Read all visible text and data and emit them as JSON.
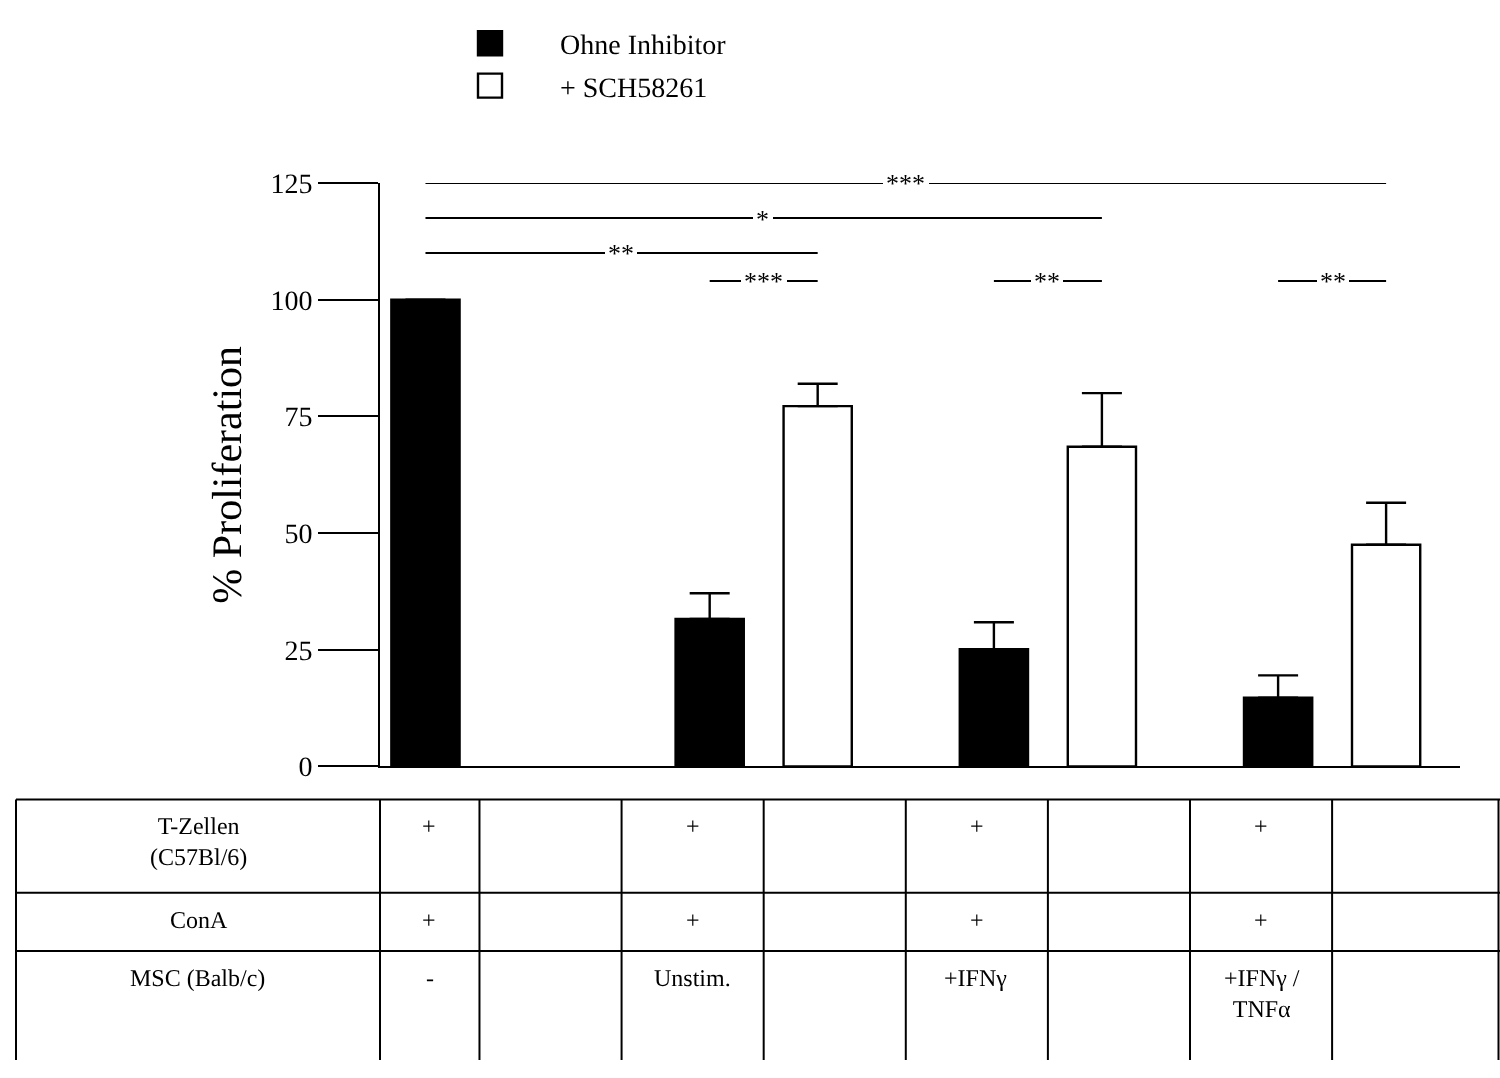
{
  "chart_data": {
    "type": "bar",
    "ylabel": "% Proliferation",
    "categories": [
      null,
      null,
      null,
      null
    ],
    "series": [
      {
        "name": "Ohne Inhibitor",
        "color": "#000000",
        "values": [
          100,
          31.6,
          25.1,
          14.7
        ],
        "errors": [
          null,
          [
            31.6,
            37.1
          ],
          [
            25.1,
            30.9
          ],
          [
            14.7,
            19.5
          ]
        ]
      },
      {
        "name": "+ SCH58261",
        "color": "#ffffff",
        "values": [
          null,
          77.2,
          68.5,
          47.5
        ],
        "errors": [
          null,
          [
            77.2,
            82
          ],
          [
            68.5,
            80
          ],
          [
            47.5,
            56.5
          ]
        ]
      }
    ],
    "ylim": [
      0,
      125
    ],
    "yticks": [
      0,
      25,
      50,
      75,
      100,
      125
    ],
    "legend": "top",
    "tick_labels": "y",
    "annotations": [
      "T-Zellen\n(C57Bl/6)",
      "+",
      "+",
      "+",
      "+",
      "ConA",
      "+",
      "+",
      "+",
      "+",
      "MSC (Balb/c)",
      "-",
      "Unstim.",
      "+IFNγ",
      "+IFNγ /\nTNFα",
      "***",
      "*",
      "**",
      "***",
      "**",
      "**"
    ]
  }
}
